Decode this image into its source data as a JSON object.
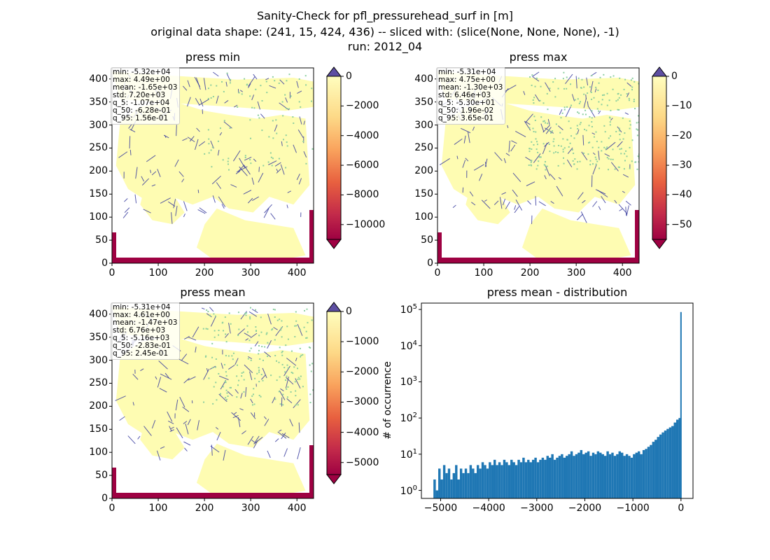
{
  "figure": {
    "suptitle_line1": "Sanity-Check for pfl_pressurehead_surf in [m]",
    "suptitle_line2": "original data shape: (241, 15, 424, 436) -- sliced with: (slice(None, None, None), -1)",
    "suptitle_line3": "run: 2012_04"
  },
  "colors": {
    "land": "#fefcb2",
    "river": "#3a3d9f",
    "green": "#8ccf9f",
    "boundary": "#9e0142",
    "hist": "#1f77b4"
  },
  "panels": {
    "min": {
      "title": "press min",
      "x_ticks": [
        "0",
        "100",
        "200",
        "300",
        "400"
      ],
      "y_ticks": [
        "0",
        "50",
        "100",
        "150",
        "200",
        "250",
        "300",
        "350",
        "400"
      ],
      "stats": [
        "min: -5.32e+04",
        "max: 4.49e+00",
        "mean: -1.65e+03",
        "std: 7.20e+03",
        "q_5: -1.07e+04",
        "q_50: -6.28e-01",
        "q_95: 1.56e-01"
      ],
      "colorbar_ticks": [
        "0",
        "−2000",
        "−4000",
        "−6000",
        "−8000",
        "−10000"
      ]
    },
    "max": {
      "title": "press max",
      "x_ticks": [
        "0",
        "100",
        "200",
        "300",
        "400"
      ],
      "y_ticks": [
        "0",
        "50",
        "100",
        "150",
        "200",
        "250",
        "300",
        "350",
        "400"
      ],
      "stats": [
        "min: -5.31e+04",
        "max: 4.75e+00",
        "mean: -1.30e+03",
        "std: 6.46e+03",
        "q_5: -5.30e+01",
        "q_50: 1.96e-02",
        "q_95: 3.65e-01"
      ],
      "colorbar_ticks": [
        "0",
        "−10",
        "−20",
        "−30",
        "−40",
        "−50"
      ]
    },
    "mean": {
      "title": "press mean",
      "x_ticks": [
        "0",
        "100",
        "200",
        "300",
        "400"
      ],
      "y_ticks": [
        "0",
        "50",
        "100",
        "150",
        "200",
        "250",
        "300",
        "350",
        "400"
      ],
      "stats": [
        "min: -5.31e+04",
        "max: 4.61e+00",
        "mean: -1.47e+03",
        "std: 6.76e+03",
        "q_5: -5.16e+03",
        "q_50: -2.83e-01",
        "q_95: 2.45e-01"
      ],
      "colorbar_ticks": [
        "0",
        "−1000",
        "−2000",
        "−3000",
        "−4000",
        "−5000"
      ]
    },
    "dist": {
      "title": "press mean - distribution",
      "ylabel": "# of occurrence",
      "x_ticks": [
        "−5000",
        "−4000",
        "−3000",
        "−2000",
        "−1000",
        "0"
      ],
      "y_tick_base": "10",
      "y_tick_exps": [
        "0",
        "1",
        "2",
        "3",
        "4",
        "5"
      ]
    }
  },
  "chart_data": [
    {
      "type": "heatmap",
      "title": "press min",
      "x_range": [
        0,
        436
      ],
      "y_range": [
        0,
        424
      ],
      "x_ticks": [
        0,
        100,
        200,
        300,
        400
      ],
      "y_ticks": [
        0,
        50,
        100,
        150,
        200,
        250,
        300,
        350,
        400
      ],
      "colormap": "Spectral",
      "colorbar_range": [
        -11000,
        0
      ],
      "colorbar_ticks": [
        0,
        -2000,
        -4000,
        -6000,
        -8000,
        -10000
      ],
      "stats": {
        "min": -53200,
        "max": 4.49,
        "mean": -1650,
        "std": 7200,
        "q_5": -10700,
        "q_50": -0.628,
        "q_95": 0.156
      }
    },
    {
      "type": "heatmap",
      "title": "press max",
      "x_range": [
        0,
        436
      ],
      "y_range": [
        0,
        424
      ],
      "x_ticks": [
        0,
        100,
        200,
        300,
        400
      ],
      "y_ticks": [
        0,
        50,
        100,
        150,
        200,
        250,
        300,
        350,
        400
      ],
      "colormap": "Spectral",
      "colorbar_range": [
        -55,
        0
      ],
      "colorbar_ticks": [
        0,
        -10,
        -20,
        -30,
        -40,
        -50
      ],
      "stats": {
        "min": -53100,
        "max": 4.75,
        "mean": -1300,
        "std": 6460,
        "q_5": -53.0,
        "q_50": 0.0196,
        "q_95": 0.365
      }
    },
    {
      "type": "heatmap",
      "title": "press mean",
      "x_range": [
        0,
        436
      ],
      "y_range": [
        0,
        424
      ],
      "x_ticks": [
        0,
        100,
        200,
        300,
        400
      ],
      "y_ticks": [
        0,
        50,
        100,
        150,
        200,
        250,
        300,
        350,
        400
      ],
      "colormap": "Spectral",
      "colorbar_range": [
        -5400,
        0
      ],
      "colorbar_ticks": [
        0,
        -1000,
        -2000,
        -3000,
        -4000,
        -5000
      ],
      "stats": {
        "min": -53100,
        "max": 4.61,
        "mean": -1470,
        "std": 6760,
        "q_5": -5160,
        "q_50": -0.283,
        "q_95": 0.245
      }
    },
    {
      "type": "bar",
      "title": "press mean - distribution",
      "xlabel": "",
      "ylabel": "# of occurrence",
      "x_range": [
        -5400,
        250
      ],
      "ylim": [
        0.6,
        150000
      ],
      "y_scale": "log",
      "x_ticks": [
        -5000,
        -4000,
        -3000,
        -2000,
        -1000,
        0
      ],
      "bin_centers": [
        -5125,
        -5075,
        -5025,
        -4975,
        -4925,
        -4875,
        -4825,
        -4775,
        -4725,
        -4675,
        -4625,
        -4575,
        -4525,
        -4475,
        -4425,
        -4375,
        -4325,
        -4275,
        -4225,
        -4175,
        -4125,
        -4075,
        -4025,
        -3975,
        -3925,
        -3875,
        -3825,
        -3775,
        -3725,
        -3675,
        -3625,
        -3575,
        -3525,
        -3475,
        -3425,
        -3375,
        -3325,
        -3275,
        -3225,
        -3175,
        -3125,
        -3075,
        -3025,
        -2975,
        -2925,
        -2875,
        -2825,
        -2775,
        -2725,
        -2675,
        -2625,
        -2575,
        -2525,
        -2475,
        -2425,
        -2375,
        -2325,
        -2275,
        -2225,
        -2175,
        -2125,
        -2075,
        -2025,
        -1975,
        -1925,
        -1875,
        -1825,
        -1775,
        -1725,
        -1675,
        -1625,
        -1575,
        -1525,
        -1475,
        -1425,
        -1375,
        -1325,
        -1275,
        -1225,
        -1175,
        -1125,
        -1075,
        -1025,
        -975,
        -925,
        -875,
        -825,
        -775,
        -725,
        -675,
        -625,
        -575,
        -525,
        -475,
        -425,
        -375,
        -325,
        -275,
        -225,
        -175,
        -125,
        -75,
        -25,
        0
      ],
      "values": [
        2,
        1,
        4,
        2,
        5,
        3,
        4,
        2,
        3,
        5,
        2,
        4,
        3,
        4,
        3,
        5,
        4,
        3,
        5,
        4,
        6,
        5,
        4,
        6,
        5,
        7,
        5,
        6,
        5,
        7,
        6,
        5,
        7,
        6,
        5,
        7,
        6,
        8,
        6,
        7,
        6,
        7,
        8,
        6,
        7,
        8,
        7,
        9,
        8,
        10,
        7,
        8,
        9,
        10,
        8,
        9,
        10,
        12,
        9,
        10,
        11,
        13,
        10,
        11,
        12,
        9,
        11,
        10,
        12,
        11,
        10,
        9,
        12,
        10,
        11,
        9,
        10,
        12,
        11,
        9,
        10,
        9,
        8,
        10,
        11,
        12,
        10,
        13,
        14,
        16,
        18,
        22,
        25,
        30,
        35,
        40,
        45,
        50,
        55,
        60,
        75,
        90,
        100,
        85000
      ]
    }
  ]
}
